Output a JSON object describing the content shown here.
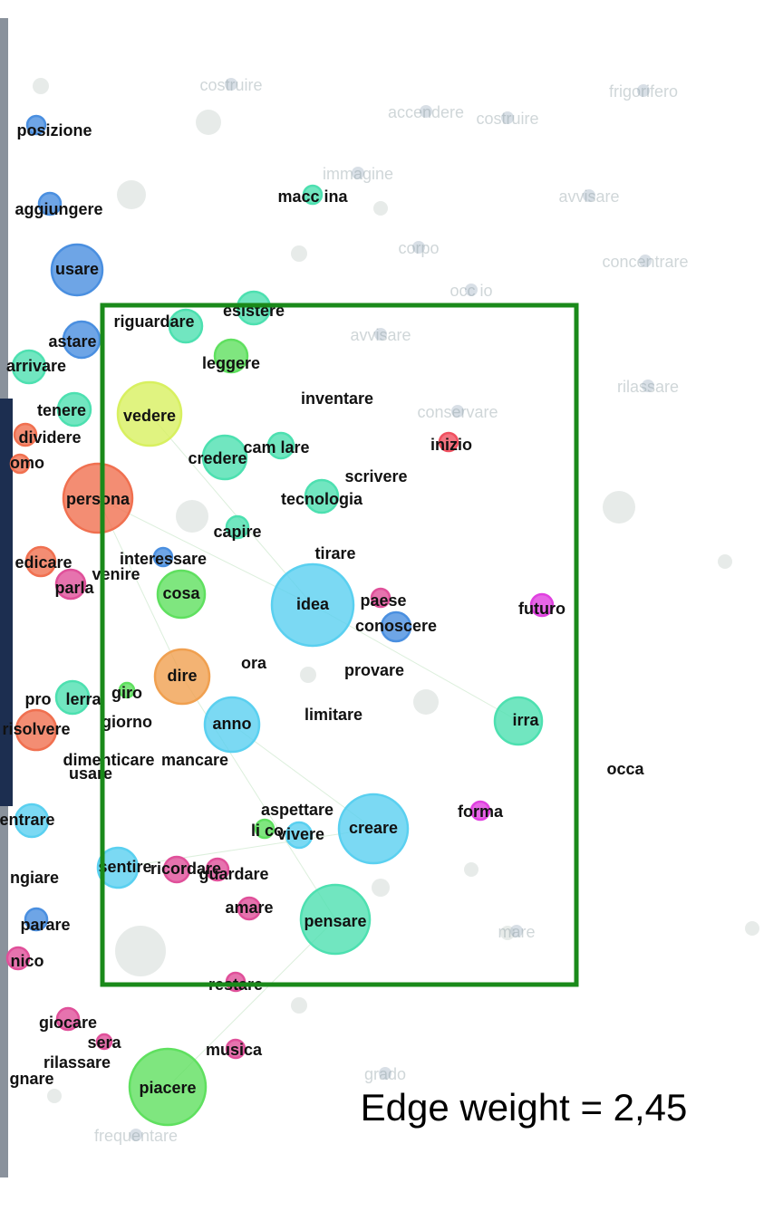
{
  "nodes": [
    {
      "label": "posizione",
      "color": "#4a8fe0"
    },
    {
      "label": "aggiungere",
      "color": "#4a8fe0"
    },
    {
      "label": "usare",
      "color": "#4a8fe0"
    },
    {
      "label": "riguardare",
      "color": "#4de0b0"
    },
    {
      "label": "esistere",
      "color": "#4de0b0"
    },
    {
      "label": "astare",
      "color": "#4a8fe0"
    },
    {
      "label": "arrivare",
      "color": "#4de0b0"
    },
    {
      "label": "leggere",
      "color": "#5fe05f"
    },
    {
      "label": "tenere",
      "color": "#4de0b0"
    },
    {
      "label": "vedere",
      "color": "#d8f060"
    },
    {
      "label": "inventare"
    },
    {
      "label": "dividere",
      "color": "#f07050"
    },
    {
      "label": "omo",
      "color": "#f07050"
    },
    {
      "label": "credere",
      "color": "#4de0b0"
    },
    {
      "label": "cam lare",
      "color": "#4de0b0"
    },
    {
      "label": "inizio",
      "color": "#f05060"
    },
    {
      "label": "scrivere"
    },
    {
      "label": "persona",
      "color": "#f07050"
    },
    {
      "label": "tecnologia",
      "color": "#4de0b0"
    },
    {
      "label": "capire",
      "color": "#4de0b0"
    },
    {
      "label": "tirare"
    },
    {
      "label": "edicare",
      "color": "#f07050"
    },
    {
      "label": "interessare",
      "color": "#4a8fe0"
    },
    {
      "label": "venire"
    },
    {
      "label": "parla",
      "color": "#e0509a"
    },
    {
      "label": "cosa",
      "color": "#5fe05f"
    },
    {
      "label": "idea",
      "color": "#5ad0f0"
    },
    {
      "label": "paese",
      "color": "#e0509a"
    },
    {
      "label": "futuro",
      "color": "#e040e0"
    },
    {
      "label": "conoscere",
      "color": "#4a8fe0"
    },
    {
      "label": "ora"
    },
    {
      "label": "provare"
    },
    {
      "label": "dire",
      "color": "#f0a050"
    },
    {
      "label": "giro",
      "color": "#5fe05f"
    },
    {
      "label": "pro"
    },
    {
      "label": "lerra",
      "color": "#4de0b0"
    },
    {
      "label": "limitare"
    },
    {
      "label": "anno",
      "color": "#5ad0f0"
    },
    {
      "label": "irra",
      "color": "#4de0b0"
    },
    {
      "label": "giorno"
    },
    {
      "label": "risolvere",
      "color": "#f07050"
    },
    {
      "label": "dimenticare"
    },
    {
      "label": "mancare"
    },
    {
      "label": "usare"
    },
    {
      "label": "occa"
    },
    {
      "label": "entrare",
      "color": "#5ad0f0"
    },
    {
      "label": "aspettare"
    },
    {
      "label": "forma",
      "color": "#e040e0"
    },
    {
      "label": "creare",
      "color": "#5ad0f0"
    },
    {
      "label": "li co",
      "color": "#5fe05f"
    },
    {
      "label": "vivere",
      "color": "#5ad0f0"
    },
    {
      "label": "sentire",
      "color": "#5ad0f0"
    },
    {
      "label": "ricordare",
      "color": "#e0509a"
    },
    {
      "label": "guardare",
      "color": "#e0509a"
    },
    {
      "label": "ngiare"
    },
    {
      "label": "amare",
      "color": "#e0509a"
    },
    {
      "label": "parare",
      "color": "#4a8fe0"
    },
    {
      "label": "pensare",
      "color": "#4de0b0"
    },
    {
      "label": "nico",
      "color": "#e0509a"
    },
    {
      "label": "restare",
      "color": "#e0509a"
    },
    {
      "label": "giocare",
      "color": "#e0509a"
    },
    {
      "label": "sera",
      "color": "#e0509a"
    },
    {
      "label": "musica",
      "color": "#e0509a"
    },
    {
      "label": "rilassare"
    },
    {
      "label": "gnare"
    },
    {
      "label": "piacere",
      "color": "#5fe05f"
    },
    {
      "label": "macc ina",
      "color": "#4de0b0"
    }
  ],
  "faded_labels": [
    "costruire",
    "frigorifero",
    "accendere",
    "costruire",
    "immagine",
    "avvisare",
    "concentrare",
    "corpo",
    "occ io",
    "avvisare",
    "rilassare",
    "conservare",
    "mare",
    "grado",
    "frequentare"
  ],
  "caption": "Edge weight = 2,45"
}
